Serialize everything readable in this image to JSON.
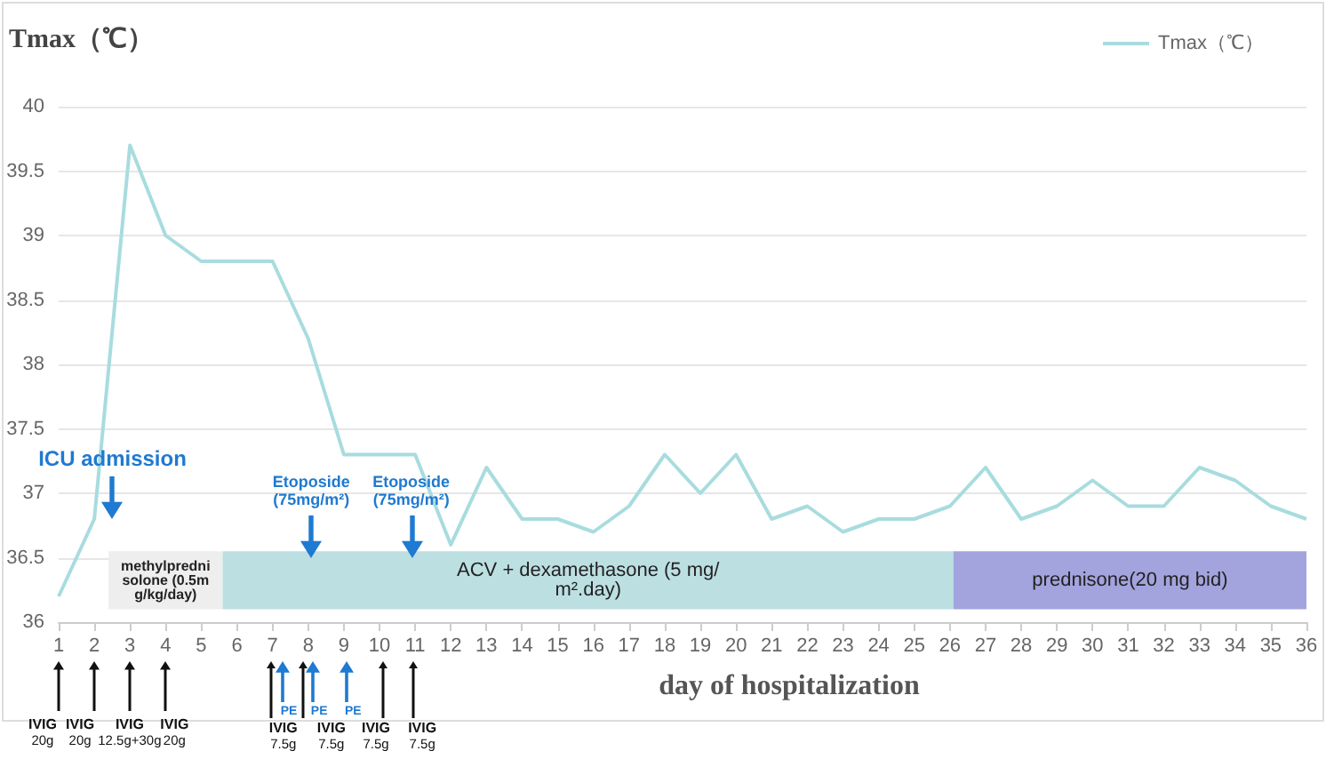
{
  "chart_data": {
    "type": "line",
    "ylabel": "Tmax（℃）",
    "xlabel": "day of hospitalization",
    "x": [
      1,
      2,
      3,
      4,
      5,
      6,
      7,
      8,
      9,
      10,
      11,
      12,
      13,
      14,
      15,
      16,
      17,
      18,
      19,
      20,
      21,
      22,
      23,
      24,
      25,
      26,
      27,
      28,
      29,
      30,
      31,
      32,
      33,
      34,
      35,
      36
    ],
    "series": [
      {
        "name": "Tmax（℃）",
        "color": "#a8dcdf",
        "values": [
          36.2,
          36.8,
          39.7,
          39.0,
          38.8,
          38.8,
          38.8,
          38.2,
          37.3,
          37.3,
          37.3,
          36.6,
          37.2,
          36.8,
          36.8,
          36.7,
          36.9,
          37.3,
          37.0,
          37.3,
          36.8,
          36.9,
          36.7,
          36.8,
          36.8,
          36.9,
          37.2,
          36.8,
          36.9,
          37.1,
          36.9,
          36.9,
          37.2,
          37.1,
          36.9,
          36.8
        ]
      }
    ],
    "xlim": [
      1,
      36
    ],
    "xticks": [
      1,
      2,
      3,
      4,
      5,
      6,
      7,
      8,
      9,
      10,
      11,
      12,
      13,
      14,
      15,
      16,
      17,
      18,
      19,
      20,
      21,
      22,
      23,
      24,
      25,
      26,
      27,
      28,
      29,
      30,
      31,
      32,
      33,
      34,
      35,
      36
    ],
    "ylim": [
      36,
      40
    ],
    "yticks": [
      36,
      36.5,
      37,
      37.5,
      38,
      38.5,
      39,
      39.5,
      40
    ],
    "grid": "y",
    "legend": "top right",
    "marker": "none",
    "line_style": "solid",
    "bands": [
      {
        "axis": "x",
        "from": 2.4,
        "to": 5.6,
        "label": "methylprednisolone (0.5mg/kg/day)",
        "color": "#eeeeee"
      },
      {
        "axis": "x",
        "from": 5.6,
        "to": 26.1,
        "label": "ACV + dexamethasone (5 mg/m².day)",
        "color": "#bcdfe2"
      },
      {
        "axis": "x",
        "from": 26.1,
        "to": 36,
        "label": "prednisone(20 mg bid)",
        "color": "#a3a3de"
      }
    ],
    "annotations": [
      "ICU admission",
      "Etoposide\n(75mg/m²)",
      "Etoposide\n(75mg/m²)",
      "IVIG\n20g",
      "IVIG\n20g",
      "IVIG\n12.5g+30g",
      "IVIG\n20g",
      "IVIG\n7.5g",
      "IVIG\n7.5g",
      "IVIG\n7.5g",
      "IVIG\n7.5g",
      "PE",
      "PE",
      "PE"
    ]
  }
}
